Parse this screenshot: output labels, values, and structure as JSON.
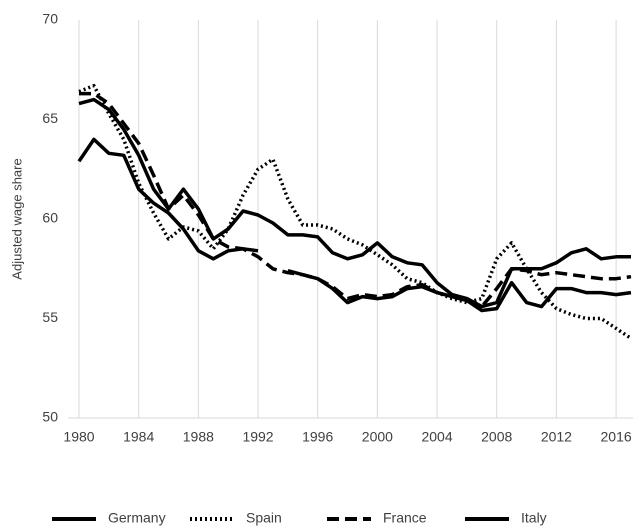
{
  "chart_data": {
    "type": "line",
    "y_axis_label": "Adjusted wage share",
    "x": [
      1980,
      1981,
      1982,
      1983,
      1984,
      1985,
      1986,
      1987,
      1988,
      1989,
      1990,
      1991,
      1992,
      1993,
      1994,
      1995,
      1996,
      1997,
      1998,
      1999,
      2000,
      2001,
      2002,
      2003,
      2004,
      2005,
      2006,
      2007,
      2008,
      2009,
      2010,
      2011,
      2012,
      2013,
      2014,
      2015,
      2016,
      2017
    ],
    "xlim": [
      1980,
      2017
    ],
    "xticks": [
      1980,
      1984,
      1988,
      1992,
      1996,
      2000,
      2004,
      2008,
      2012,
      2016
    ],
    "ylim": [
      50,
      70
    ],
    "yticks": [
      50,
      55,
      60,
      65,
      70
    ],
    "grid": true,
    "legend": "bottom",
    "series": [
      {
        "name": "Germany",
        "color": "#000000",
        "style": "solid",
        "values": [
          62.9,
          64.0,
          63.3,
          63.2,
          61.5,
          60.8,
          60.3,
          59.5,
          58.4,
          58.0,
          58.4,
          58.5,
          58.4,
          null,
          57.4,
          57.2,
          57.0,
          56.5,
          55.8,
          56.1,
          56.0,
          56.1,
          56.5,
          56.6,
          56.3,
          56.1,
          55.9,
          55.4,
          55.5,
          56.8,
          55.8,
          55.6,
          56.5,
          56.5,
          56.3,
          56.3,
          56.2,
          56.3
        ]
      },
      {
        "name": "Spain",
        "color": "#000000",
        "style": "dotted",
        "values": [
          66.4,
          66.7,
          65.3,
          64.0,
          61.8,
          60.3,
          59.0,
          59.6,
          59.4,
          58.5,
          59.5,
          61.2,
          62.5,
          63.0,
          61.0,
          59.7,
          59.7,
          59.5,
          59.0,
          58.7,
          58.2,
          57.7,
          57.0,
          56.8,
          56.3,
          56.0,
          55.8,
          56.0,
          58.0,
          58.8,
          57.5,
          56.3,
          55.5,
          55.2,
          55.0,
          55.0,
          54.5,
          54.0
        ]
      },
      {
        "name": "France",
        "color": "#000000",
        "style": "dashed",
        "values": [
          66.3,
          66.3,
          65.8,
          64.8,
          63.8,
          62.2,
          60.5,
          61.2,
          60.2,
          59.0,
          58.6,
          58.5,
          58.1,
          57.5,
          57.3,
          57.2,
          57.0,
          56.6,
          56.0,
          56.2,
          56.1,
          56.2,
          56.6,
          56.7,
          56.3,
          56.1,
          55.9,
          55.6,
          56.5,
          57.5,
          57.4,
          57.2,
          57.3,
          57.2,
          57.1,
          57.0,
          57.0,
          57.1
        ]
      },
      {
        "name": "Italy",
        "color": "#000000",
        "style": "solid",
        "values": [
          65.8,
          66.0,
          65.5,
          64.5,
          63.2,
          61.5,
          60.5,
          61.5,
          60.5,
          59.0,
          59.5,
          60.4,
          60.2,
          59.8,
          59.2,
          59.2,
          59.1,
          58.3,
          58.0,
          58.2,
          58.8,
          58.1,
          57.8,
          57.7,
          56.8,
          56.2,
          56.0,
          55.6,
          55.8,
          57.5,
          57.5,
          57.5,
          57.8,
          58.3,
          58.5,
          58.0,
          58.1,
          58.1
        ]
      }
    ]
  }
}
